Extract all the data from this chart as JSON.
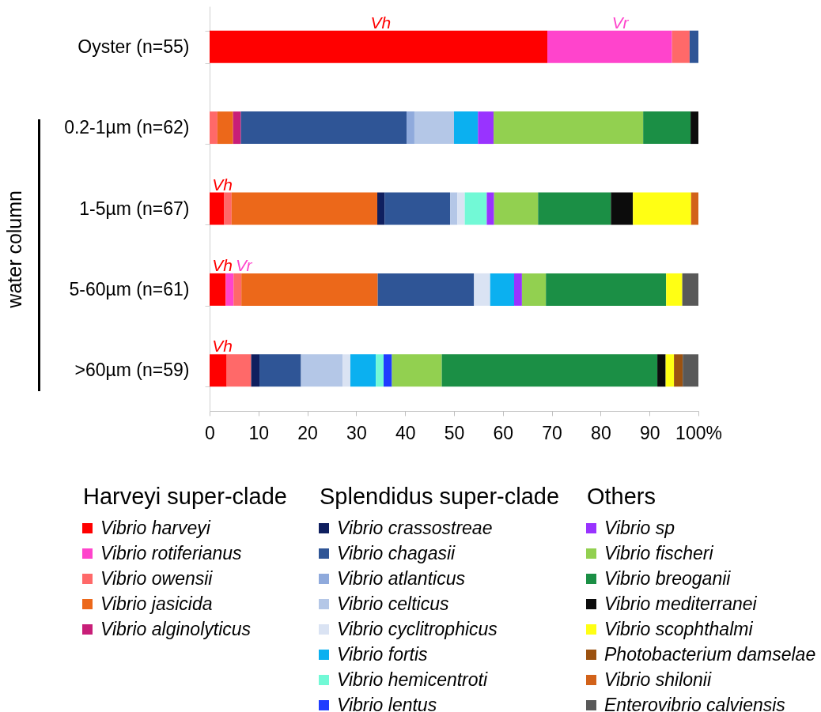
{
  "chart_data": {
    "type": "bar",
    "orientation": "horizontal",
    "stacked": true,
    "categories": [
      "Oyster (n=55)",
      "0.2-1µm (n=62)",
      "1-5µm (n=67)",
      "5-60µm (n=61)",
      ">60µm (n=59)"
    ],
    "series": [
      {
        "name": "Vibrio harveyi",
        "color": "#ff0000",
        "values": [
          69.1,
          null,
          3.0,
          3.3,
          3.5
        ]
      },
      {
        "name": "Vibrio rotiferianus",
        "color": "#ff44cc",
        "values": [
          25.5,
          null,
          null,
          1.6,
          null
        ]
      },
      {
        "name": "Vibrio owensii",
        "color": "#ff6969",
        "values": [
          3.6,
          1.6,
          1.5,
          1.6,
          5.0
        ]
      },
      {
        "name": "Vibrio jasicida",
        "color": "#ec681a",
        "values": [
          null,
          3.2,
          29.8,
          27.9,
          null
        ]
      },
      {
        "name": "Vibrio alginolyticus",
        "color": "#c81e78",
        "values": [
          null,
          1.6,
          null,
          null,
          null
        ]
      },
      {
        "name": "Vibrio crassostreae",
        "color": "#0f1f5f",
        "values": [
          null,
          null,
          1.5,
          null,
          1.7
        ]
      },
      {
        "name": "Vibrio chagasii",
        "color": "#2f5596",
        "values": [
          1.8,
          33.9,
          13.4,
          19.7,
          8.5
        ]
      },
      {
        "name": "Vibrio atlanticus",
        "color": "#8faadc",
        "values": [
          null,
          1.6,
          null,
          null,
          null
        ]
      },
      {
        "name": "Vibrio celticus",
        "color": "#b4c7e7",
        "values": [
          null,
          8.1,
          1.5,
          null,
          8.5
        ]
      },
      {
        "name": "Vibrio cyclitrophicus",
        "color": "#dae3f3",
        "values": [
          null,
          null,
          1.5,
          3.3,
          1.6
        ]
      },
      {
        "name": "Vibrio fortis",
        "color": "#0bb0f0",
        "values": [
          null,
          4.9,
          null,
          4.9,
          5.2
        ]
      },
      {
        "name": "Vibrio hemicentroti",
        "color": "#72f9d6",
        "values": [
          null,
          null,
          4.5,
          null,
          1.6
        ]
      },
      {
        "name": "Vibrio lentus",
        "color": "#1f3dff",
        "values": [
          null,
          null,
          null,
          null,
          1.7
        ]
      },
      {
        "name": "Vibrio sp",
        "color": "#9933ff",
        "values": [
          null,
          3.2,
          1.5,
          1.6,
          null
        ]
      },
      {
        "name": "Vibrio fischeri",
        "color": "#92d050",
        "values": [
          null,
          30.6,
          9.0,
          4.9,
          10.2
        ]
      },
      {
        "name": "Vibrio breoganii",
        "color": "#1b8f45",
        "values": [
          null,
          9.7,
          14.9,
          24.6,
          44.1
        ]
      },
      {
        "name": "Vibrio mediterranei",
        "color": "#0c0c0c",
        "values": [
          null,
          1.6,
          4.5,
          null,
          1.7
        ]
      },
      {
        "name": "Vibrio scophthalmi",
        "color": "#ffff14",
        "values": [
          null,
          null,
          11.9,
          3.3,
          1.7
        ]
      },
      {
        "name": "Photobacterium damselae",
        "color": "#9c5210",
        "values": [
          null,
          null,
          null,
          null,
          1.8
        ]
      },
      {
        "name": "Vibrio shilonii",
        "color": "#d2621a",
        "values": [
          null,
          null,
          1.5,
          null,
          null
        ]
      },
      {
        "name": "Enterovibrio calviensis",
        "color": "#595959",
        "values": [
          null,
          null,
          null,
          3.3,
          3.2
        ]
      }
    ],
    "xlim": [
      0,
      100
    ],
    "xticks": [
      0,
      10,
      20,
      30,
      40,
      50,
      60,
      70,
      80,
      90,
      {
        "value": 100,
        "label": "100%"
      }
    ],
    "legend": "bottom",
    "legend_title": [
      "Harveyi super-clade",
      "Splendidus super-clade",
      "Others"
    ],
    "annotations": [
      "Vh",
      "Vr",
      "Vh",
      "Vh",
      "Vr",
      "Vh",
      "water column"
    ]
  }
}
